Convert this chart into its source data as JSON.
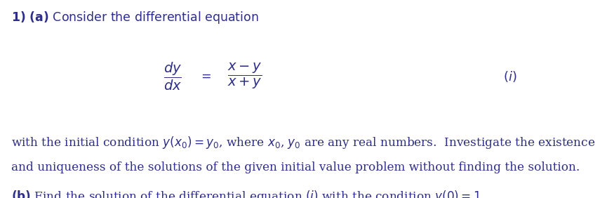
{
  "background_color": "#ffffff",
  "figsize": [
    8.65,
    2.82
  ],
  "dpi": 100,
  "text_color": "#2e2e8a",
  "fs_main": 12.5,
  "fs_eq": 14,
  "fs_label": 13,
  "fs_body": 12.2
}
